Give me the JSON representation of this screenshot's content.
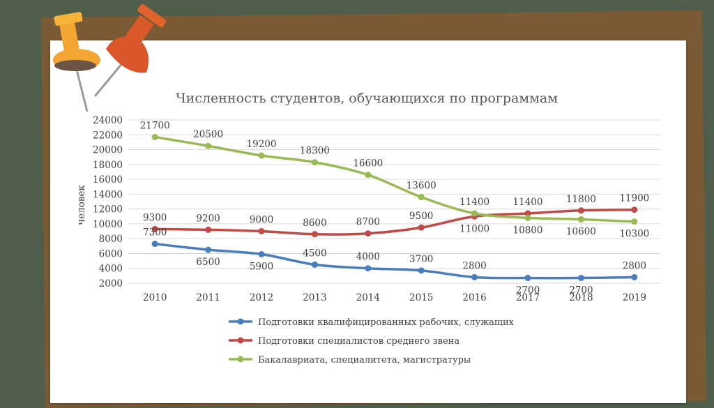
{
  "chart_data": {
    "type": "line",
    "title": "Численность студентов, обучающихся по программам",
    "xlabel": "",
    "ylabel": "человек",
    "x": [
      "2010",
      "2011",
      "2012",
      "2013",
      "2014",
      "2015",
      "2016",
      "2017",
      "2018",
      "2019"
    ],
    "yticks": [
      2000,
      4000,
      6000,
      8000,
      10000,
      12000,
      14000,
      16000,
      18000,
      20000,
      22000,
      24000
    ],
    "ylim": [
      2000,
      24000
    ],
    "grid": true,
    "legend": "bottom",
    "series": [
      {
        "name": "Подготовки квалифицированных рабочих, служащих",
        "color": "#4a7ebb",
        "values": [
          7300,
          6500,
          5900,
          4500,
          4000,
          3700,
          2800,
          2700,
          2700,
          2800
        ],
        "labels": [
          "7300",
          "6500",
          "5900",
          "4500",
          "4000",
          "3700",
          "2800",
          "2700",
          "2700",
          "2800"
        ]
      },
      {
        "name": "Подготовки специалистов среднего звена",
        "color": "#be4b48",
        "values": [
          9300,
          9200,
          9000,
          8600,
          8700,
          9500,
          11000,
          11400,
          11800,
          11900
        ],
        "labels": [
          "9300",
          "9200",
          "9000",
          "8600",
          "8700",
          "9500",
          "11000",
          "11400",
          "11800",
          "11900"
        ]
      },
      {
        "name": "Бакалавриата, специалитета, магистратуры",
        "color": "#98b954",
        "values": [
          21700,
          20500,
          19200,
          18300,
          16600,
          13600,
          11400,
          10800,
          10600,
          10300
        ],
        "labels": [
          "21700",
          "20500",
          "19200",
          "18300",
          "16600",
          "13600",
          "11400",
          "10800",
          "10600",
          "10300"
        ]
      }
    ]
  }
}
